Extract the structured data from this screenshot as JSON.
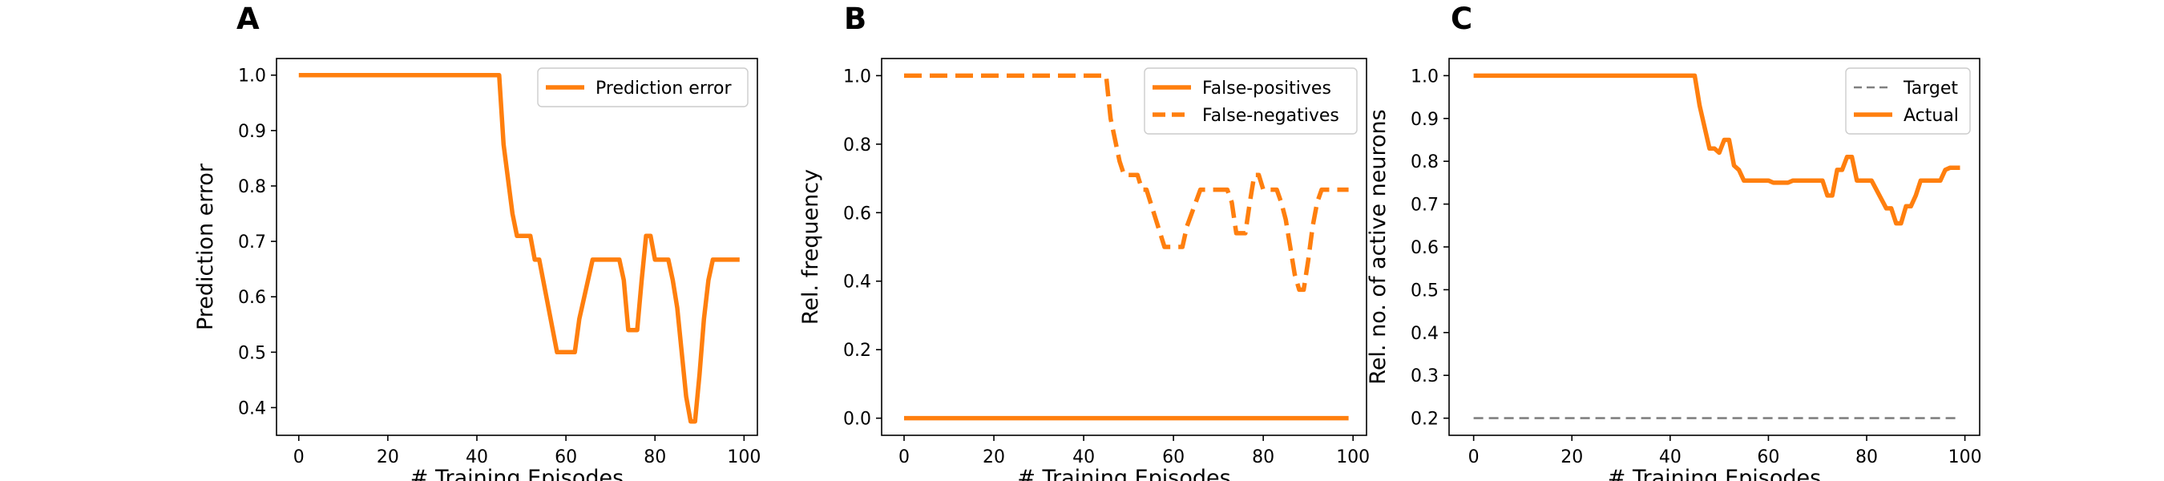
{
  "chart_data": [
    {
      "panel": "A",
      "type": "line",
      "xlabel": "# Training Episodes",
      "ylabel": "Prediction error",
      "xlim": [
        -5,
        103
      ],
      "ylim": [
        0.35,
        1.03
      ],
      "xticks": [
        0,
        20,
        40,
        60,
        80,
        100
      ],
      "yticks": [
        0.4,
        0.5,
        0.6,
        0.7,
        0.8,
        0.9,
        1.0
      ],
      "ytick_labels": [
        "0.4",
        "0.5",
        "0.6",
        "0.7",
        "0.8",
        "0.9",
        "1.0"
      ],
      "legend_position": "top-right",
      "series": [
        {
          "name": "Prediction error",
          "color": "#ff7f0e",
          "style": "solid",
          "x": [
            0,
            45,
            46,
            48,
            49,
            52,
            53,
            54,
            58,
            59,
            62,
            63,
            66,
            72,
            73,
            74,
            76,
            77,
            78,
            79,
            80,
            83,
            84,
            85,
            87,
            88,
            89,
            90,
            91,
            92,
            93,
            99
          ],
          "y": [
            1.0,
            1.0,
            0.875,
            0.75,
            0.71,
            0.71,
            0.667,
            0.667,
            0.5,
            0.5,
            0.5,
            0.56,
            0.667,
            0.667,
            0.63,
            0.54,
            0.54,
            0.63,
            0.71,
            0.71,
            0.667,
            0.667,
            0.63,
            0.58,
            0.42,
            0.375,
            0.375,
            0.46,
            0.56,
            0.63,
            0.667,
            0.667
          ]
        }
      ]
    },
    {
      "panel": "B",
      "type": "line",
      "xlabel": "# Training Episodes",
      "ylabel": "Rel. frequency",
      "xlim": [
        -5,
        103
      ],
      "ylim": [
        -0.05,
        1.05
      ],
      "xticks": [
        0,
        20,
        40,
        60,
        80,
        100
      ],
      "yticks": [
        0.0,
        0.2,
        0.4,
        0.6,
        0.8,
        1.0
      ],
      "ytick_labels": [
        "0.0",
        "0.2",
        "0.4",
        "0.6",
        "0.8",
        "1.0"
      ],
      "legend_position": "top-right",
      "series": [
        {
          "name": "False-positives",
          "color": "#ff7f0e",
          "style": "solid",
          "x": [
            0,
            99
          ],
          "y": [
            0.0,
            0.0
          ]
        },
        {
          "name": "False-negatives",
          "color": "#ff7f0e",
          "style": "dashed",
          "x": [
            0,
            45,
            46,
            48,
            49,
            52,
            53,
            54,
            58,
            59,
            62,
            63,
            66,
            72,
            73,
            74,
            76,
            77,
            78,
            79,
            80,
            83,
            84,
            85,
            87,
            88,
            89,
            90,
            91,
            92,
            93,
            99
          ],
          "y": [
            1.0,
            1.0,
            0.875,
            0.75,
            0.71,
            0.71,
            0.667,
            0.667,
            0.5,
            0.5,
            0.5,
            0.56,
            0.667,
            0.667,
            0.63,
            0.54,
            0.54,
            0.63,
            0.71,
            0.71,
            0.667,
            0.667,
            0.63,
            0.58,
            0.42,
            0.375,
            0.375,
            0.46,
            0.56,
            0.63,
            0.667,
            0.667
          ]
        }
      ]
    },
    {
      "panel": "C",
      "type": "line",
      "xlabel": "# Training Episodes",
      "ylabel": "Rel. no. of active neurons",
      "xlim": [
        -5,
        103
      ],
      "ylim": [
        0.16,
        1.04
      ],
      "xticks": [
        0,
        20,
        40,
        60,
        80,
        100
      ],
      "yticks": [
        0.2,
        0.3,
        0.4,
        0.5,
        0.6,
        0.7,
        0.8,
        0.9,
        1.0
      ],
      "ytick_labels": [
        "0.2",
        "0.3",
        "0.4",
        "0.5",
        "0.6",
        "0.7",
        "0.8",
        "0.9",
        "1.0"
      ],
      "legend_position": "top-right",
      "series": [
        {
          "name": "Target",
          "color": "#808080",
          "style": "thin-dashed",
          "x": [
            0,
            99
          ],
          "y": [
            0.2,
            0.2
          ]
        },
        {
          "name": "Actual",
          "color": "#ff7f0e",
          "style": "solid",
          "x": [
            0,
            45,
            46,
            48,
            49,
            50,
            51,
            52,
            53,
            54,
            55,
            56,
            60,
            61,
            64,
            65,
            66,
            70,
            71,
            72,
            73,
            74,
            75,
            76,
            77,
            78,
            79,
            80,
            81,
            84,
            85,
            86,
            87,
            88,
            89,
            90,
            91,
            92,
            95,
            96,
            97,
            99
          ],
          "y": [
            1.0,
            1.0,
            0.93,
            0.83,
            0.83,
            0.82,
            0.85,
            0.85,
            0.79,
            0.78,
            0.755,
            0.755,
            0.755,
            0.75,
            0.75,
            0.755,
            0.755,
            0.755,
            0.755,
            0.72,
            0.72,
            0.78,
            0.78,
            0.81,
            0.81,
            0.755,
            0.755,
            0.755,
            0.755,
            0.69,
            0.69,
            0.655,
            0.655,
            0.695,
            0.695,
            0.72,
            0.755,
            0.755,
            0.755,
            0.78,
            0.785,
            0.785
          ]
        }
      ]
    }
  ]
}
